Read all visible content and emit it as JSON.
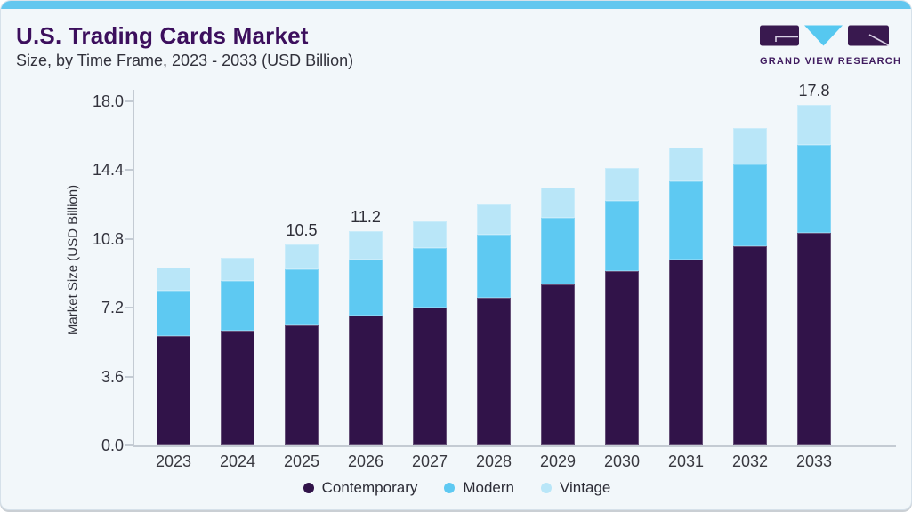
{
  "header": {
    "title": "U.S. Trading Cards Market",
    "subtitle": "Size, by Time Frame, 2023 - 2033 (USD Billion)",
    "brand": "GRAND VIEW RESEARCH"
  },
  "colors": {
    "accent_bar": "#63c7ef",
    "card_background": "#f2f7fa",
    "title_text": "#3c0f5d",
    "contemporary": "#311349",
    "modern": "#5ec9f2",
    "vintage": "#b9e6f8",
    "axis_line": "#c4cbd3",
    "logo_purple": "#39194f",
    "logo_blue": "#56c8f0"
  },
  "chart_data": {
    "type": "bar",
    "stacked": true,
    "title": "U.S. Trading Cards Market",
    "subtitle": "Size, by Time Frame, 2023 - 2033 (USD Billion)",
    "categories": [
      "2023",
      "2024",
      "2025",
      "2026",
      "2027",
      "2028",
      "2029",
      "2030",
      "2031",
      "2032",
      "2033"
    ],
    "series": [
      {
        "name": "Contemporary",
        "color_key": "contemporary",
        "values": [
          5.7,
          6.0,
          6.3,
          6.8,
          7.2,
          7.7,
          8.4,
          9.1,
          9.7,
          10.4,
          11.1
        ]
      },
      {
        "name": "Modern",
        "color_key": "modern",
        "values": [
          2.4,
          2.6,
          2.9,
          2.9,
          3.1,
          3.3,
          3.5,
          3.7,
          4.1,
          4.3,
          4.6
        ]
      },
      {
        "name": "Vintage",
        "color_key": "vintage",
        "values": [
          1.2,
          1.2,
          1.3,
          1.5,
          1.4,
          1.6,
          1.6,
          1.7,
          1.8,
          1.9,
          2.1
        ]
      }
    ],
    "totals_shown": [
      null,
      null,
      "10.5",
      "11.2",
      null,
      null,
      null,
      null,
      null,
      null,
      "17.8"
    ],
    "ylabel": "Market Size (USD Billion)",
    "xlabel": "",
    "ylim": [
      0,
      18
    ],
    "yticks": [
      "0.0",
      "3.6",
      "7.2",
      "10.8",
      "14.4",
      "18.0"
    ],
    "grid": false,
    "legend_position": "bottom"
  }
}
